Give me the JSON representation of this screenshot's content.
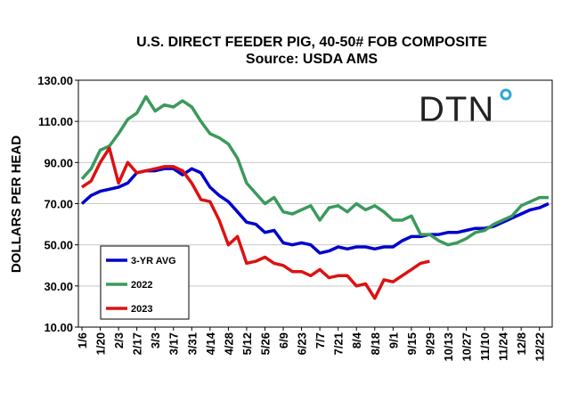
{
  "chart_data": {
    "type": "line",
    "title": "U.S. DIRECT FEEDER PIG, 40-50# FOB COMPOSITE",
    "subtitle": "Source:  USDA AMS",
    "y_label": "DOLLARS PER HEAD",
    "logo": "DTN",
    "categories": [
      "1/6",
      null,
      "1/20",
      null,
      "2/3",
      null,
      "2/17",
      null,
      "3/3",
      null,
      "3/17",
      null,
      "3/31",
      null,
      "4/14",
      null,
      "4/28",
      null,
      "5/12",
      null,
      "5/26",
      null,
      "6/9",
      null,
      "6/23",
      null,
      "7/7",
      null,
      "7/21",
      null,
      "8/4",
      null,
      "8/18",
      null,
      "9/1",
      null,
      "9/15",
      null,
      "9/29",
      null,
      "10/13",
      null,
      "10/27",
      null,
      "11/10",
      null,
      "11/24",
      null,
      "12/8",
      null,
      "12/22",
      null
    ],
    "series": [
      {
        "name": "3-YR AVG",
        "color": "#0000cc",
        "values": [
          70,
          74,
          76,
          77,
          78,
          80,
          85,
          86,
          86,
          87,
          87,
          84,
          87,
          85,
          78,
          74,
          71,
          66,
          61,
          60,
          56,
          57,
          51,
          50,
          51,
          50,
          46,
          47,
          49,
          48,
          49,
          49,
          48,
          49,
          49,
          52,
          54,
          54,
          55,
          55,
          56,
          56,
          57,
          58,
          58,
          59,
          61,
          63,
          65,
          67,
          68,
          70
        ]
      },
      {
        "name": "2022",
        "color": "#3a9a5c",
        "values": [
          82,
          87,
          96,
          98,
          104,
          111,
          114,
          122,
          115,
          118,
          117,
          120,
          117,
          110,
          104,
          102,
          99,
          92,
          80,
          75,
          70,
          73,
          66,
          65,
          67,
          69,
          62,
          68,
          69,
          66,
          70,
          67,
          69,
          66,
          62,
          62,
          64,
          55,
          55,
          52,
          50,
          51,
          53,
          56,
          57,
          60,
          62,
          64,
          69,
          71,
          73,
          73
        ]
      },
      {
        "name": "2023",
        "color": "#dd1111",
        "values": [
          78,
          81,
          90,
          97,
          80,
          90,
          85,
          86,
          87,
          88,
          88,
          86,
          80,
          72,
          71,
          62,
          50,
          54,
          41,
          42,
          44,
          41,
          40,
          37,
          37,
          35,
          38,
          34,
          35,
          35,
          30,
          31,
          24,
          33,
          32,
          35,
          38,
          41,
          42,
          null,
          null,
          null,
          null,
          null,
          null,
          null,
          null,
          null,
          null,
          null,
          null,
          null
        ]
      }
    ],
    "ylim": [
      10,
      130
    ],
    "yticks": [
      {
        "value": 10,
        "label": "10.00"
      },
      {
        "value": 30,
        "label": "30.00"
      },
      {
        "value": 50,
        "label": "50.00"
      },
      {
        "value": 70,
        "label": "70.00"
      },
      {
        "value": 90,
        "label": "90.00"
      },
      {
        "value": 110,
        "label": "110.00"
      },
      {
        "value": 130,
        "label": "130.00"
      }
    ],
    "grid": true,
    "legend": "lower left"
  }
}
